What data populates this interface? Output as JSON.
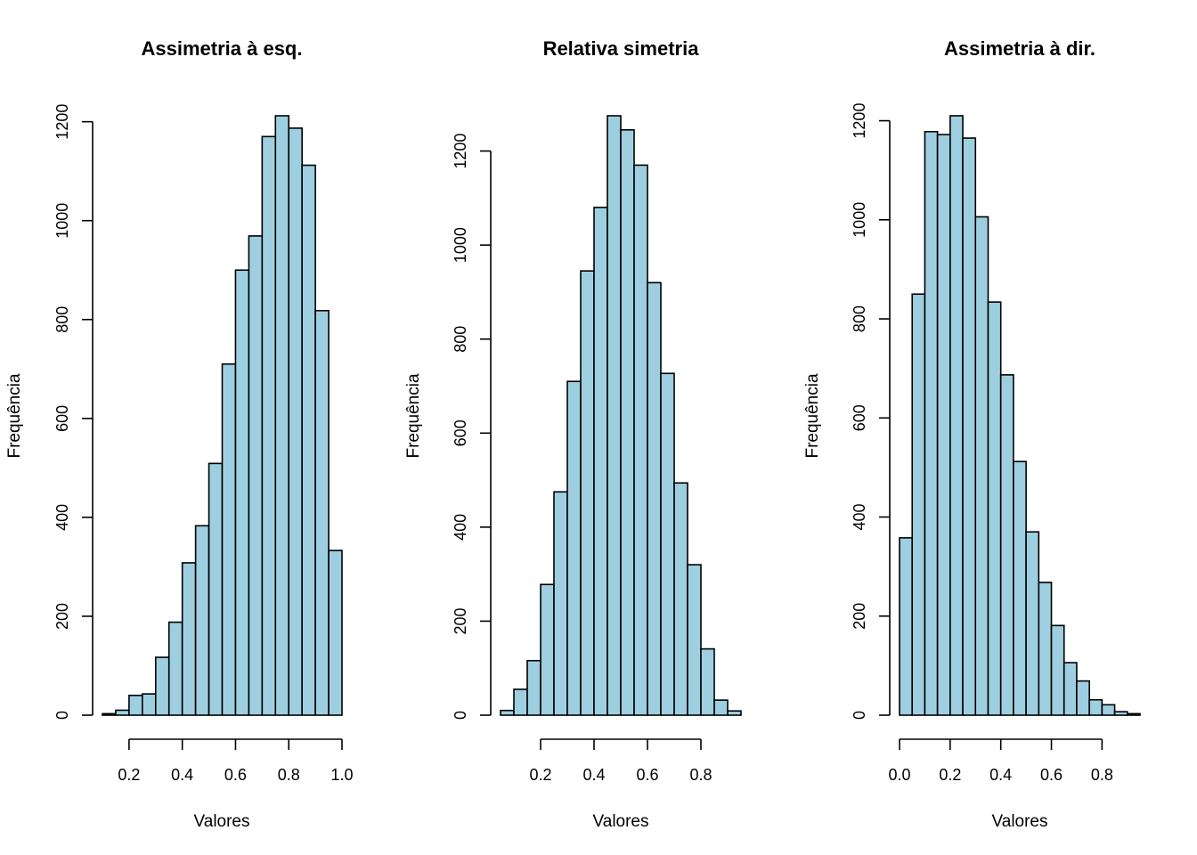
{
  "chart_data": [
    {
      "type": "bar",
      "title": "Assimetria à esq.",
      "xlabel": "Valores",
      "ylabel": "Frequência",
      "bin_width": 0.05,
      "bin_start": 0.1,
      "values": [
        3,
        10,
        40,
        43,
        117,
        188,
        308,
        383,
        509,
        710,
        900,
        969,
        1170,
        1212,
        1187,
        1112,
        818,
        333
      ],
      "xticks": [
        0.2,
        0.4,
        0.6,
        0.8,
        1.0
      ],
      "xtick_labels": [
        "0.2",
        "0.4",
        "0.6",
        "0.8",
        "1.0"
      ],
      "yticks": [
        0,
        200,
        400,
        600,
        800,
        1000,
        1200
      ],
      "ytick_labels": [
        "0",
        "200",
        "400",
        "600",
        "800",
        "1000",
        "1200"
      ],
      "xlim": [
        0.1,
        1.0
      ],
      "ylim": [
        0,
        1212
      ],
      "bar_color": "#9ecfe0"
    },
    {
      "type": "bar",
      "title": "Relativa simetria",
      "xlabel": "Valores",
      "ylabel": "Frequência",
      "bin_width": 0.05,
      "bin_start": 0.05,
      "values": [
        10,
        55,
        116,
        278,
        475,
        710,
        945,
        1080,
        1275,
        1245,
        1170,
        920,
        727,
        494,
        320,
        141,
        32,
        9
      ],
      "xticks": [
        0.2,
        0.4,
        0.6,
        0.8
      ],
      "xtick_labels": [
        "0.2",
        "0.4",
        "0.6",
        "0.8"
      ],
      "yticks": [
        0,
        200,
        400,
        600,
        800,
        1000,
        1200
      ],
      "ytick_labels": [
        "0",
        "200",
        "400",
        "600",
        "800",
        "1000",
        "1200"
      ],
      "xlim": [
        0.05,
        0.95
      ],
      "ylim": [
        0,
        1275
      ],
      "bar_color": "#9ecfe0"
    },
    {
      "type": "bar",
      "title": "Assimetria à dir.",
      "xlabel": "Valores",
      "ylabel": "Frequência",
      "bin_width": 0.05,
      "bin_start": 0.0,
      "values": [
        358,
        850,
        1178,
        1172,
        1210,
        1165,
        1006,
        834,
        687,
        512,
        370,
        268,
        181,
        106,
        69,
        31,
        21,
        7,
        3
      ],
      "xticks": [
        0.0,
        0.2,
        0.4,
        0.6,
        0.8
      ],
      "xtick_labels": [
        "0.0",
        "0.2",
        "0.4",
        "0.6",
        "0.8"
      ],
      "yticks": [
        0,
        200,
        400,
        600,
        800,
        1000,
        1200
      ],
      "ytick_labels": [
        "0",
        "200",
        "400",
        "600",
        "800",
        "1000",
        "1200"
      ],
      "xlim": [
        0.0,
        0.95
      ],
      "ylim": [
        0,
        1210
      ],
      "bar_color": "#9ecfe0"
    }
  ]
}
